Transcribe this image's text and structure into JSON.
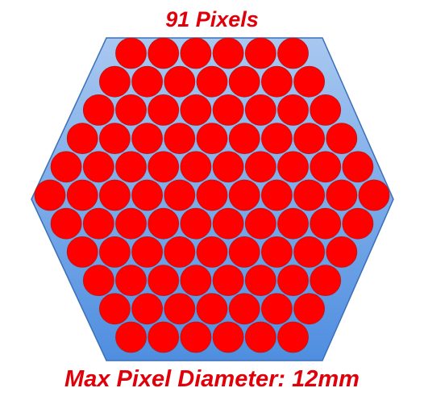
{
  "title": "91 Pixels",
  "footer": "Max Pixel Diameter: 12mm",
  "colors": {
    "text": "#e0000a",
    "pixel_fill": "#ff0000",
    "pixel_stroke": "#b51a1a",
    "hex_top": "#a8c8f0",
    "hex_bottom": "#4f8ee0",
    "hex_stroke": "#3a6fb8"
  },
  "pixel_rows": [
    6,
    7,
    8,
    9,
    10,
    11,
    10,
    9,
    8,
    7,
    6
  ],
  "pixel_count": 91
}
